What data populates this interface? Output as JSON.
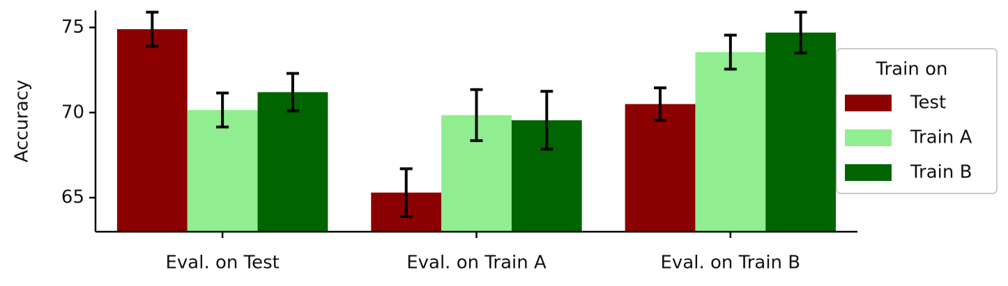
{
  "chart_data": {
    "type": "bar",
    "categories": [
      "Eval. on Test",
      "Eval. on Train A",
      "Eval. on Train B"
    ],
    "y_label": "Accuracy",
    "legend_title": "Train on",
    "legend_position": "right",
    "series": [
      {
        "name": "Test",
        "color": "#8b0000",
        "values": [
          74.9,
          65.3,
          70.5
        ],
        "errors": [
          1.0,
          1.4,
          0.95
        ]
      },
      {
        "name": "Train A",
        "color": "#90ee90",
        "values": [
          70.15,
          69.85,
          73.55
        ],
        "errors": [
          1.0,
          1.5,
          1.0
        ]
      },
      {
        "name": "Train B",
        "color": "#006400",
        "values": [
          71.2,
          69.55,
          74.7
        ],
        "errors": [
          1.1,
          1.7,
          1.2
        ]
      }
    ],
    "ylim": [
      63,
      76
    ],
    "yticks": [
      65,
      70,
      75
    ]
  }
}
